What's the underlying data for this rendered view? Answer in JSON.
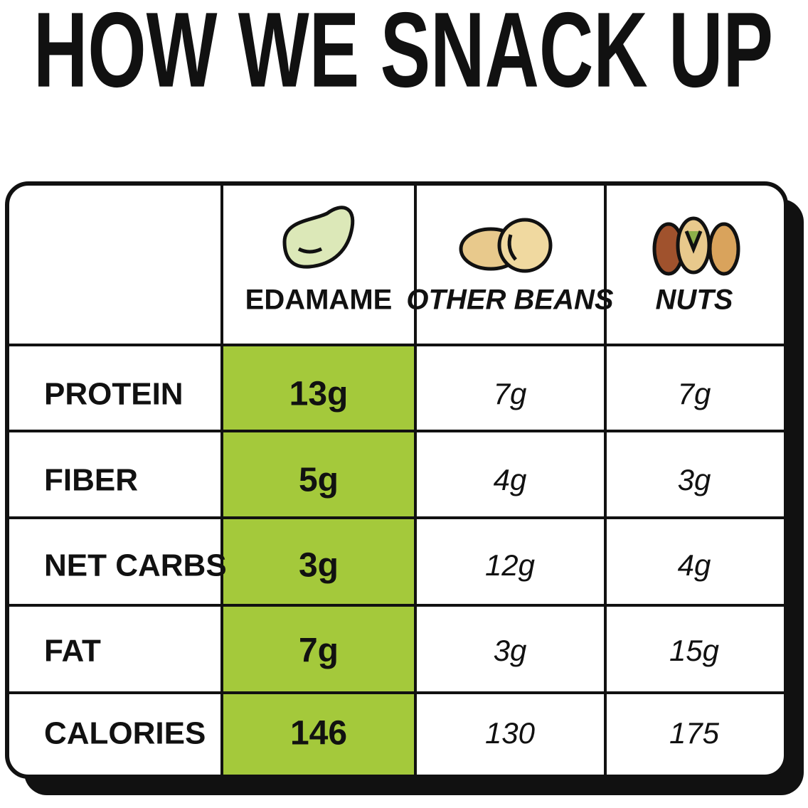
{
  "header": {
    "title": "HOW WE SNACK UP"
  },
  "table": {
    "columns": [
      "EDAMAME",
      "OTHER BEANS",
      "NUTS"
    ],
    "rows": [
      [
        "PROTEIN",
        "13g",
        "7g",
        "7g"
      ],
      [
        "FIBER",
        "5g",
        "4g",
        "3g"
      ],
      [
        "NET CARBS",
        "3g",
        "12g",
        "4g"
      ],
      [
        "FAT",
        "7g",
        "3g",
        "15g"
      ],
      [
        "CALORIES",
        "146",
        "130",
        "175"
      ]
    ]
  }
}
